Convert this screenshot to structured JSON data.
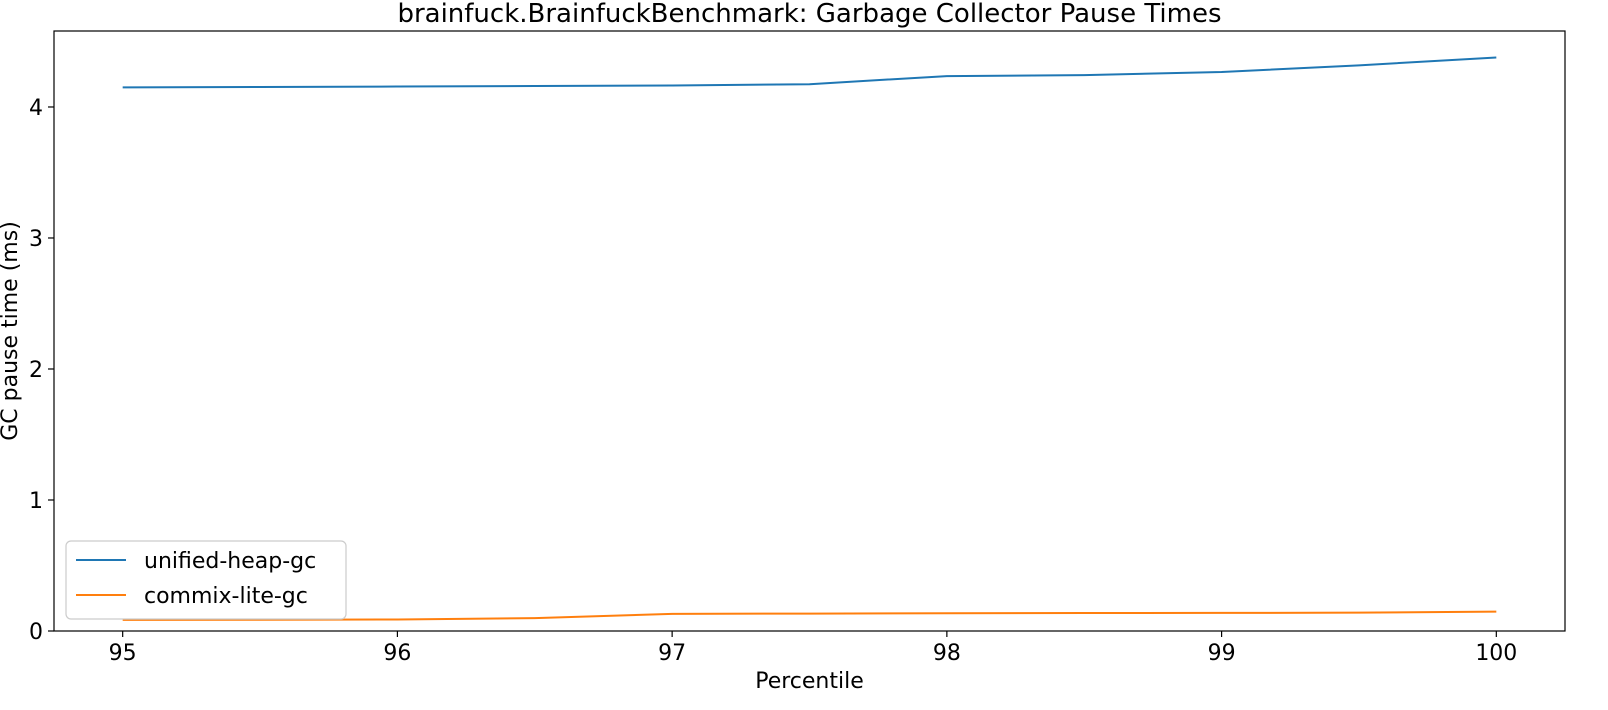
{
  "chart_data": {
    "type": "line",
    "title": "brainfuck.BrainfuckBenchmark: Garbage Collector Pause Times",
    "xlabel": "Percentile",
    "ylabel": "GC pause time (ms)",
    "xlim": [
      94.75,
      100.25
    ],
    "ylim": [
      0,
      4.58
    ],
    "xticks": [
      95,
      96,
      97,
      98,
      99,
      100
    ],
    "yticks": [
      0,
      1,
      2,
      3,
      4
    ],
    "grid": false,
    "legend_position": "lower-left",
    "series": [
      {
        "name": "unified-heap-gc",
        "color": "#1f77b4",
        "x": [
          95,
          95.5,
          96,
          96.5,
          97,
          97.5,
          98,
          98.5,
          99,
          99.5,
          100
        ],
        "y": [
          4.15,
          4.153,
          4.156,
          4.16,
          4.164,
          4.174,
          4.236,
          4.243,
          4.267,
          4.318,
          4.378
        ]
      },
      {
        "name": "commix-lite-gc",
        "color": "#ff7f0e",
        "x": [
          95,
          95.5,
          96,
          96.5,
          97,
          97.5,
          98,
          98.5,
          99,
          99.5,
          100
        ],
        "y": [
          0.085,
          0.086,
          0.088,
          0.098,
          0.131,
          0.133,
          0.135,
          0.137,
          0.138,
          0.14,
          0.148
        ]
      }
    ]
  }
}
